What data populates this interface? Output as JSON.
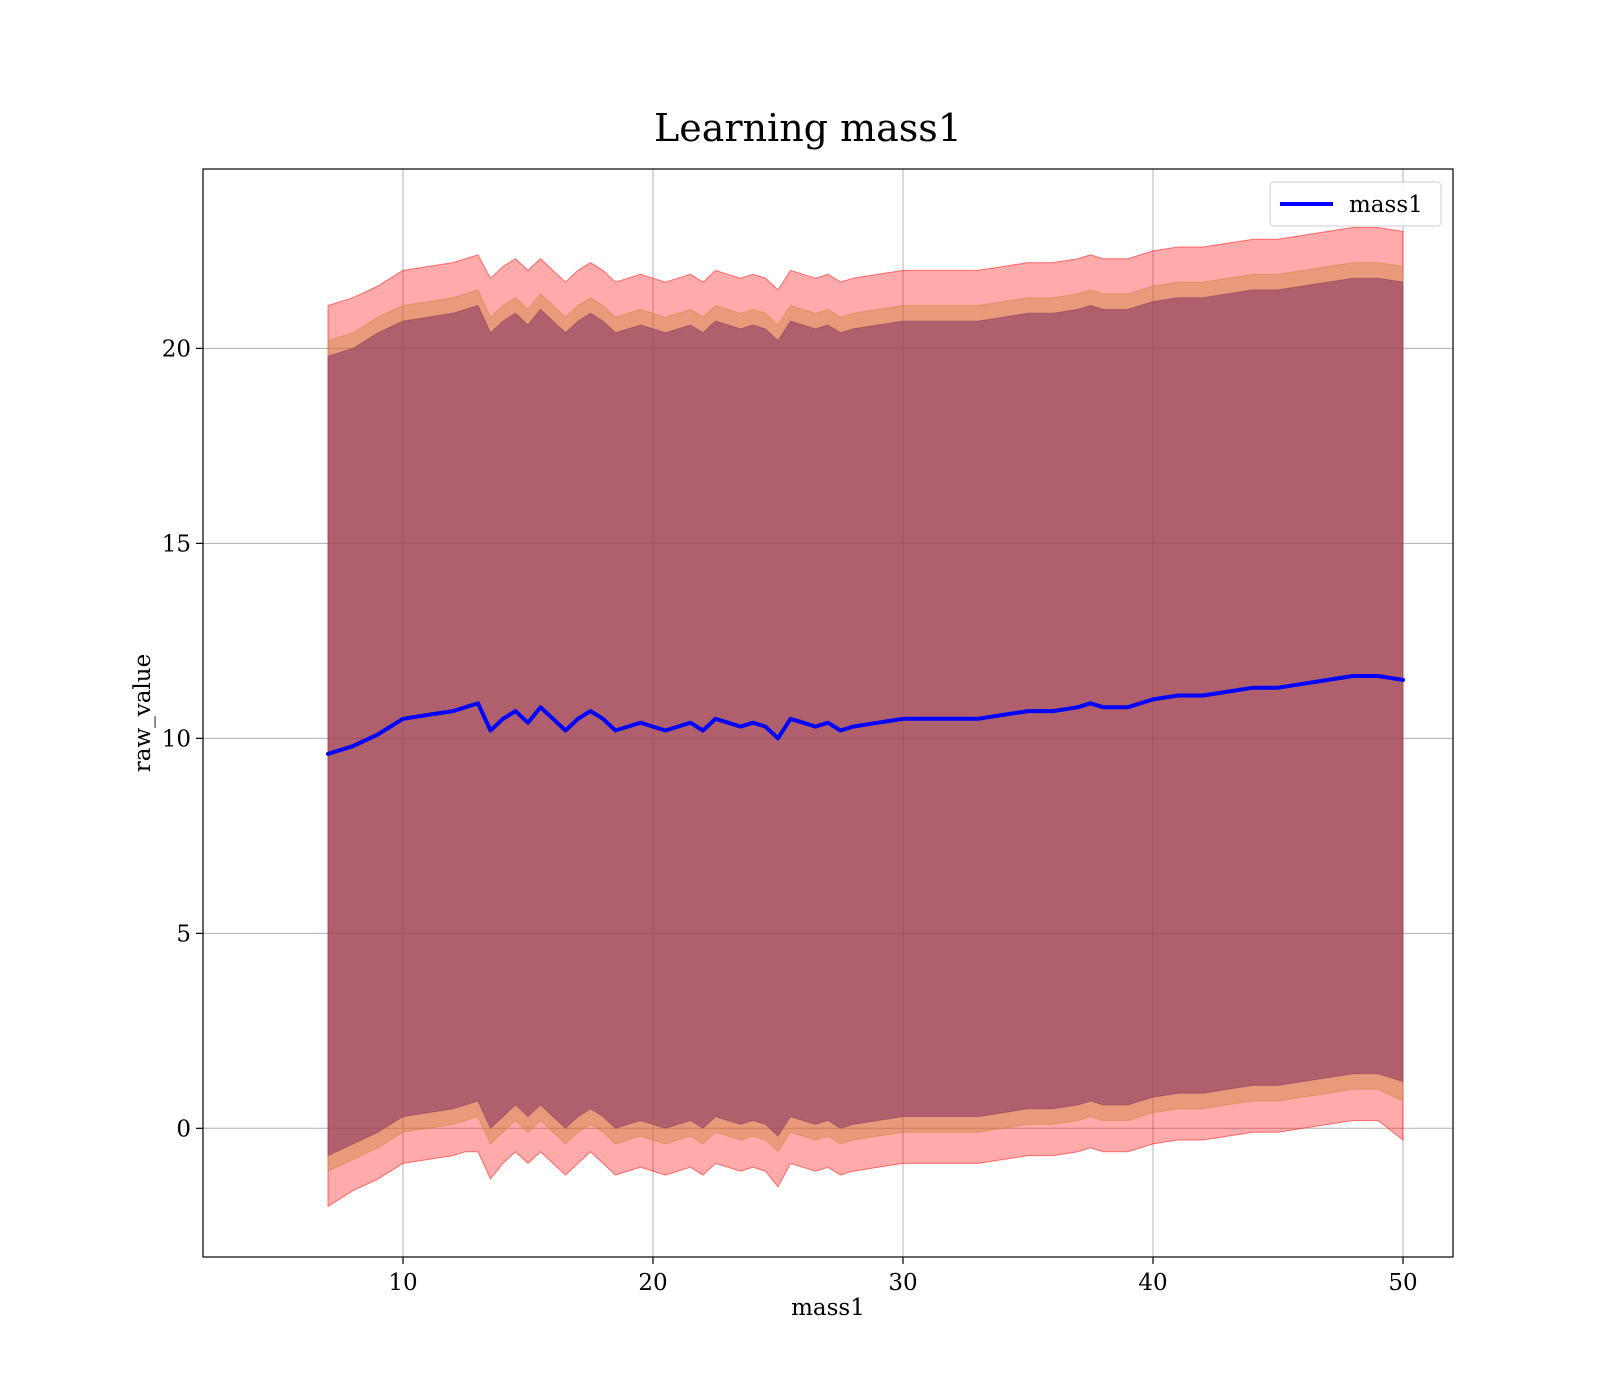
{
  "chart_data": {
    "type": "line",
    "title": "Learning mass1",
    "xlabel": "mass1",
    "ylabel": "raw_value",
    "xlim": [
      2,
      52
    ],
    "ylim": [
      -3.3,
      24.6
    ],
    "xticks": [
      10,
      20,
      30,
      40,
      50
    ],
    "yticks": [
      0,
      5,
      10,
      15,
      20
    ],
    "grid": true,
    "legend_position": "upper right",
    "series": [
      {
        "name": "mass1",
        "kind": "line",
        "color": "#0000ff",
        "x": [
          7,
          8,
          9,
          10,
          11,
          12,
          12.5,
          13,
          13.5,
          14,
          14.5,
          15,
          15.5,
          16,
          16.5,
          17,
          17.5,
          18,
          18.5,
          19,
          19.5,
          20,
          20.5,
          21,
          21.5,
          22,
          22.5,
          23,
          23.5,
          24,
          24.5,
          25,
          25.5,
          26,
          26.5,
          27,
          27.5,
          28,
          29,
          30,
          31,
          32,
          33,
          34,
          35,
          36,
          37,
          37.5,
          38,
          39,
          40,
          41,
          42,
          43,
          44,
          45,
          46,
          47,
          48,
          49,
          50
        ],
        "y": [
          9.6,
          9.8,
          10.1,
          10.5,
          10.6,
          10.7,
          10.8,
          10.9,
          10.2,
          10.5,
          10.7,
          10.4,
          10.8,
          10.5,
          10.2,
          10.5,
          10.7,
          10.5,
          10.2,
          10.3,
          10.4,
          10.3,
          10.2,
          10.3,
          10.4,
          10.2,
          10.5,
          10.4,
          10.3,
          10.4,
          10.3,
          10.0,
          10.5,
          10.4,
          10.3,
          10.4,
          10.2,
          10.3,
          10.4,
          10.5,
          10.5,
          10.5,
          10.5,
          10.6,
          10.7,
          10.7,
          10.8,
          10.9,
          10.8,
          10.8,
          11.0,
          11.1,
          11.1,
          11.2,
          11.3,
          11.3,
          11.4,
          11.5,
          11.6,
          11.6,
          11.5
        ]
      },
      {
        "name": "",
        "kind": "band",
        "color": "#ff0000",
        "opacity": 0.33,
        "x": [
          7,
          8,
          9,
          10,
          11,
          12,
          12.5,
          13,
          13.5,
          14,
          14.5,
          15,
          15.5,
          16,
          16.5,
          17,
          17.5,
          18,
          18.5,
          19,
          19.5,
          20,
          20.5,
          21,
          21.5,
          22,
          22.5,
          23,
          23.5,
          24,
          24.5,
          25,
          25.5,
          26,
          26.5,
          27,
          27.5,
          28,
          29,
          30,
          31,
          32,
          33,
          34,
          35,
          36,
          37,
          37.5,
          38,
          39,
          40,
          41,
          42,
          43,
          44,
          45,
          46,
          47,
          48,
          49,
          50
        ],
        "y_low": [
          -2.0,
          -1.6,
          -1.3,
          -0.9,
          -0.8,
          -0.7,
          -0.6,
          -0.6,
          -1.3,
          -0.9,
          -0.6,
          -0.9,
          -0.6,
          -0.9,
          -1.2,
          -0.9,
          -0.6,
          -0.9,
          -1.2,
          -1.1,
          -1.0,
          -1.1,
          -1.2,
          -1.1,
          -1.0,
          -1.2,
          -0.9,
          -1.0,
          -1.1,
          -1.0,
          -1.1,
          -1.5,
          -0.9,
          -1.0,
          -1.1,
          -1.0,
          -1.2,
          -1.1,
          -1.0,
          -0.9,
          -0.9,
          -0.9,
          -0.9,
          -0.8,
          -0.7,
          -0.7,
          -0.6,
          -0.5,
          -0.6,
          -0.6,
          -0.4,
          -0.3,
          -0.3,
          -0.2,
          -0.1,
          -0.1,
          0.0,
          0.1,
          0.2,
          0.2,
          -0.3
        ],
        "y_high": [
          21.1,
          21.3,
          21.6,
          22.0,
          22.1,
          22.2,
          22.3,
          22.4,
          21.8,
          22.1,
          22.3,
          22.0,
          22.3,
          22.0,
          21.7,
          22.0,
          22.2,
          22.0,
          21.7,
          21.8,
          21.9,
          21.8,
          21.7,
          21.8,
          21.9,
          21.7,
          22.0,
          21.9,
          21.8,
          21.9,
          21.8,
          21.5,
          22.0,
          21.9,
          21.8,
          21.9,
          21.7,
          21.8,
          21.9,
          22.0,
          22.0,
          22.0,
          22.0,
          22.1,
          22.2,
          22.2,
          22.3,
          22.4,
          22.3,
          22.3,
          22.5,
          22.6,
          22.6,
          22.7,
          22.8,
          22.8,
          22.9,
          23.0,
          23.1,
          23.1,
          23.0
        ]
      },
      {
        "name": "",
        "kind": "band",
        "color": "#cd853f",
        "opacity": 0.45,
        "x": [
          7,
          8,
          9,
          10,
          11,
          12,
          12.5,
          13,
          13.5,
          14,
          14.5,
          15,
          15.5,
          16,
          16.5,
          17,
          17.5,
          18,
          18.5,
          19,
          19.5,
          20,
          20.5,
          21,
          21.5,
          22,
          22.5,
          23,
          23.5,
          24,
          24.5,
          25,
          25.5,
          26,
          26.5,
          27,
          27.5,
          28,
          29,
          30,
          31,
          32,
          33,
          34,
          35,
          36,
          37,
          37.5,
          38,
          39,
          40,
          41,
          42,
          43,
          44,
          45,
          46,
          47,
          48,
          49,
          50
        ],
        "y_low": [
          -1.1,
          -0.8,
          -0.5,
          -0.1,
          0.0,
          0.1,
          0.2,
          0.3,
          -0.4,
          -0.1,
          0.2,
          -0.1,
          0.2,
          -0.1,
          -0.4,
          -0.1,
          0.1,
          -0.1,
          -0.4,
          -0.3,
          -0.2,
          -0.3,
          -0.4,
          -0.3,
          -0.2,
          -0.4,
          -0.1,
          -0.2,
          -0.3,
          -0.2,
          -0.3,
          -0.6,
          -0.1,
          -0.2,
          -0.3,
          -0.2,
          -0.4,
          -0.3,
          -0.2,
          -0.1,
          -0.1,
          -0.1,
          -0.1,
          0.0,
          0.1,
          0.1,
          0.2,
          0.3,
          0.2,
          0.2,
          0.4,
          0.5,
          0.5,
          0.6,
          0.7,
          0.7,
          0.8,
          0.9,
          1.0,
          1.0,
          0.7
        ],
        "y_high": [
          20.2,
          20.4,
          20.8,
          21.1,
          21.2,
          21.3,
          21.4,
          21.5,
          20.8,
          21.1,
          21.3,
          21.0,
          21.4,
          21.1,
          20.8,
          21.1,
          21.3,
          21.1,
          20.8,
          20.9,
          21.0,
          20.9,
          20.8,
          20.9,
          21.0,
          20.8,
          21.1,
          21.0,
          20.9,
          21.0,
          20.9,
          20.6,
          21.1,
          21.0,
          20.9,
          21.0,
          20.8,
          20.9,
          21.0,
          21.1,
          21.1,
          21.1,
          21.1,
          21.2,
          21.3,
          21.3,
          21.4,
          21.5,
          21.4,
          21.4,
          21.6,
          21.7,
          21.7,
          21.8,
          21.9,
          21.9,
          22.0,
          22.1,
          22.2,
          22.2,
          22.1
        ]
      },
      {
        "name": "",
        "kind": "band",
        "color": "#8b3a62",
        "opacity": 0.6,
        "x": [
          7,
          8,
          9,
          10,
          11,
          12,
          12.5,
          13,
          13.5,
          14,
          14.5,
          15,
          15.5,
          16,
          16.5,
          17,
          17.5,
          18,
          18.5,
          19,
          19.5,
          20,
          20.5,
          21,
          21.5,
          22,
          22.5,
          23,
          23.5,
          24,
          24.5,
          25,
          25.5,
          26,
          26.5,
          27,
          27.5,
          28,
          29,
          30,
          31,
          32,
          33,
          34,
          35,
          36,
          37,
          37.5,
          38,
          39,
          40,
          41,
          42,
          43,
          44,
          45,
          46,
          47,
          48,
          49,
          50
        ],
        "y_low": [
          -0.7,
          -0.4,
          -0.1,
          0.3,
          0.4,
          0.5,
          0.6,
          0.7,
          0.0,
          0.3,
          0.6,
          0.3,
          0.6,
          0.3,
          0.0,
          0.3,
          0.5,
          0.3,
          0.0,
          0.1,
          0.2,
          0.1,
          0.0,
          0.1,
          0.2,
          0.0,
          0.3,
          0.2,
          0.1,
          0.2,
          0.1,
          -0.2,
          0.3,
          0.2,
          0.1,
          0.2,
          0.0,
          0.1,
          0.2,
          0.3,
          0.3,
          0.3,
          0.3,
          0.4,
          0.5,
          0.5,
          0.6,
          0.7,
          0.6,
          0.6,
          0.8,
          0.9,
          0.9,
          1.0,
          1.1,
          1.1,
          1.2,
          1.3,
          1.4,
          1.4,
          1.2
        ],
        "y_high": [
          19.8,
          20.0,
          20.4,
          20.7,
          20.8,
          20.9,
          21.0,
          21.1,
          20.4,
          20.7,
          20.9,
          20.6,
          21.0,
          20.7,
          20.4,
          20.7,
          20.9,
          20.7,
          20.4,
          20.5,
          20.6,
          20.5,
          20.4,
          20.5,
          20.6,
          20.4,
          20.7,
          20.6,
          20.5,
          20.6,
          20.5,
          20.2,
          20.7,
          20.6,
          20.5,
          20.6,
          20.4,
          20.5,
          20.6,
          20.7,
          20.7,
          20.7,
          20.7,
          20.8,
          20.9,
          20.9,
          21.0,
          21.1,
          21.0,
          21.0,
          21.2,
          21.3,
          21.3,
          21.4,
          21.5,
          21.5,
          21.6,
          21.7,
          21.8,
          21.8,
          21.7
        ]
      }
    ]
  }
}
